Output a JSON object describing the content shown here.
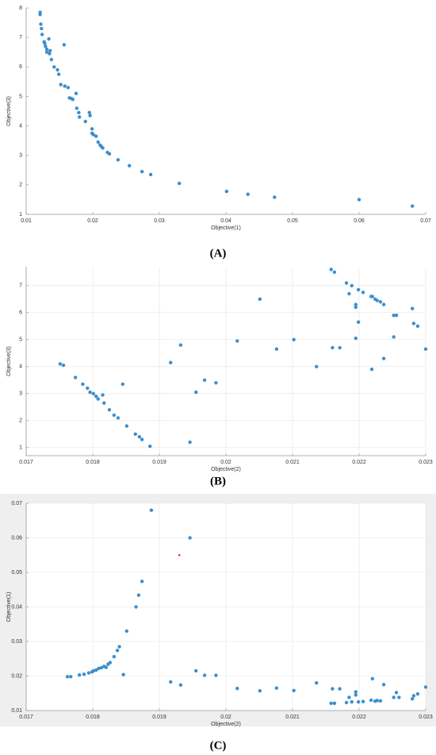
{
  "chart_data": [
    {
      "type": "scatter",
      "caption": "(A)",
      "xlabel": "Objective(1)",
      "ylabel": "Objective(3)",
      "xlim": [
        0.01,
        0.07
      ],
      "ylim": [
        1,
        8
      ],
      "xticks": [
        0.01,
        0.02,
        0.03,
        0.04,
        0.05,
        0.06,
        0.07
      ],
      "yticks": [
        1,
        2,
        3,
        4,
        5,
        6,
        7,
        8
      ],
      "grid": false,
      "series": [
        {
          "color": "#3a8fd0",
          "x": [
            0.0121,
            0.0121,
            0.0122,
            0.0123,
            0.0124,
            0.0127,
            0.0128,
            0.0129,
            0.0131,
            0.0134,
            0.0131,
            0.0135,
            0.0136,
            0.0138,
            0.0142,
            0.0147,
            0.0149,
            0.0152,
            0.0158,
            0.0157,
            0.0163,
            0.0165,
            0.0168,
            0.017,
            0.0175,
            0.0176,
            0.0179,
            0.018,
            0.0189,
            0.0195,
            0.0196,
            0.0199,
            0.0199,
            0.0201,
            0.0205,
            0.0208,
            0.0211,
            0.0213,
            0.0215,
            0.0222,
            0.0225,
            0.0238,
            0.0255,
            0.0274,
            0.0287,
            0.033,
            0.0401,
            0.0433,
            0.0473,
            0.06,
            0.068
          ],
          "values": [
            7.85,
            7.78,
            7.45,
            7.3,
            7.1,
            6.85,
            6.8,
            6.7,
            6.6,
            6.95,
            6.5,
            6.45,
            6.55,
            6.25,
            6.0,
            5.9,
            5.75,
            5.4,
            5.35,
            6.75,
            5.3,
            4.95,
            4.93,
            4.9,
            5.1,
            4.6,
            4.45,
            4.3,
            4.15,
            4.45,
            4.35,
            3.9,
            3.75,
            3.7,
            3.65,
            3.45,
            3.35,
            3.3,
            3.25,
            3.1,
            3.05,
            2.85,
            2.65,
            2.45,
            2.35,
            2.05,
            1.78,
            1.68,
            1.58,
            1.5,
            1.28
          ]
        }
      ]
    },
    {
      "type": "scatter",
      "caption": "(B)",
      "xlabel": "Objective(2)",
      "ylabel": "Objective(3)",
      "xlim": [
        0.017,
        0.023
      ],
      "ylim": [
        0.7,
        7.7
      ],
      "xticks": [
        0.017,
        0.018,
        0.019,
        0.02,
        0.021,
        0.022,
        0.023
      ],
      "yticks": [
        1,
        2,
        3,
        4,
        5,
        6,
        7
      ],
      "grid": true,
      "series": [
        {
          "color": "#3a8fd0",
          "x": [
            0.01751,
            0.01756,
            0.01774,
            0.01785,
            0.01792,
            0.01796,
            0.01801,
            0.01805,
            0.01808,
            0.01815,
            0.01817,
            0.01825,
            0.01832,
            0.01838,
            0.01845,
            0.01851,
            0.01864,
            0.0187,
            0.01874,
            0.01886,
            0.01917,
            0.01932,
            0.01946,
            0.01955,
            0.01968,
            0.01985,
            0.02017,
            0.02051,
            0.02076,
            0.02102,
            0.02136,
            0.02158,
            0.02163,
            0.0216,
            0.02171,
            0.02181,
            0.02185,
            0.02189,
            0.02195,
            0.02195,
            0.02195,
            0.02199,
            0.02199,
            0.02206,
            0.02218,
            0.0222,
            0.02224,
            0.02227,
            0.02232,
            0.02237,
            0.02252,
            0.02256,
            0.02252,
            0.02237,
            0.02219,
            0.0228,
            0.02282,
            0.02288,
            0.023
          ],
          "values": [
            4.1,
            4.05,
            3.6,
            3.35,
            3.2,
            3.05,
            3.0,
            2.9,
            2.8,
            2.95,
            2.65,
            2.4,
            2.2,
            2.1,
            3.35,
            1.8,
            1.5,
            1.4,
            1.3,
            1.05,
            4.15,
            4.8,
            1.2,
            3.05,
            3.5,
            3.4,
            4.95,
            6.5,
            4.65,
            5.0,
            4.0,
            7.6,
            7.5,
            4.7,
            4.7,
            7.1,
            6.7,
            7.0,
            6.3,
            6.2,
            5.05,
            6.85,
            5.65,
            6.75,
            6.6,
            6.6,
            6.5,
            6.45,
            6.4,
            6.3,
            5.9,
            5.9,
            5.1,
            4.3,
            3.9,
            6.15,
            5.6,
            5.5,
            4.65
          ]
        }
      ]
    },
    {
      "type": "scatter",
      "caption": "(C)",
      "xlabel": "Objective(2)",
      "ylabel": "Objective(1)",
      "xlim": [
        0.017,
        0.023
      ],
      "ylim": [
        0.01,
        0.07
      ],
      "xticks": [
        0.017,
        0.018,
        0.019,
        0.02,
        0.021,
        0.022,
        0.023
      ],
      "yticks": [
        0.01,
        0.02,
        0.03,
        0.04,
        0.05,
        0.06,
        0.07
      ],
      "grid": true,
      "background": "#efefef",
      "series": [
        {
          "color": "#3a8fd0",
          "x": [
            0.01762,
            0.01767,
            0.0178,
            0.01787,
            0.01794,
            0.01799,
            0.01801,
            0.01805,
            0.01809,
            0.01813,
            0.01817,
            0.0182,
            0.01823,
            0.01826,
            0.01832,
            0.01837,
            0.0184,
            0.01846,
            0.01851,
            0.01865,
            0.01869,
            0.01874,
            0.01888,
            0.01917,
            0.01932,
            0.01946,
            0.01955,
            0.01968,
            0.01985,
            0.02017,
            0.02051,
            0.02076,
            0.02102,
            0.02136,
            0.02158,
            0.02163,
            0.0216,
            0.02171,
            0.02181,
            0.02185,
            0.02189,
            0.02195,
            0.02195,
            0.02199,
            0.02206,
            0.02218,
            0.0222,
            0.02224,
            0.02227,
            0.02232,
            0.02237,
            0.02252,
            0.02256,
            0.0226,
            0.0228,
            0.02282,
            0.02288,
            0.023
          ],
          "values": [
            0.0198,
            0.0198,
            0.0203,
            0.0205,
            0.0209,
            0.0212,
            0.0215,
            0.0217,
            0.0222,
            0.0224,
            0.0228,
            0.0225,
            0.0234,
            0.0239,
            0.0256,
            0.0274,
            0.0285,
            0.0204,
            0.033,
            0.04,
            0.0434,
            0.0474,
            0.068,
            0.0183,
            0.0174,
            0.06,
            0.0215,
            0.0202,
            0.0202,
            0.0164,
            0.0157,
            0.0165,
            0.0158,
            0.018,
            0.0121,
            0.0121,
            0.0163,
            0.0163,
            0.0123,
            0.0138,
            0.0125,
            0.0145,
            0.0154,
            0.0125,
            0.0126,
            0.013,
            0.0192,
            0.0127,
            0.0129,
            0.0128,
            0.0175,
            0.0138,
            0.0152,
            0.0138,
            0.0134,
            0.0143,
            0.0148,
            0.0168
          ]
        },
        {
          "color": "#e01010",
          "x": [
            0.0193
          ],
          "values": [
            0.055
          ]
        }
      ]
    }
  ]
}
